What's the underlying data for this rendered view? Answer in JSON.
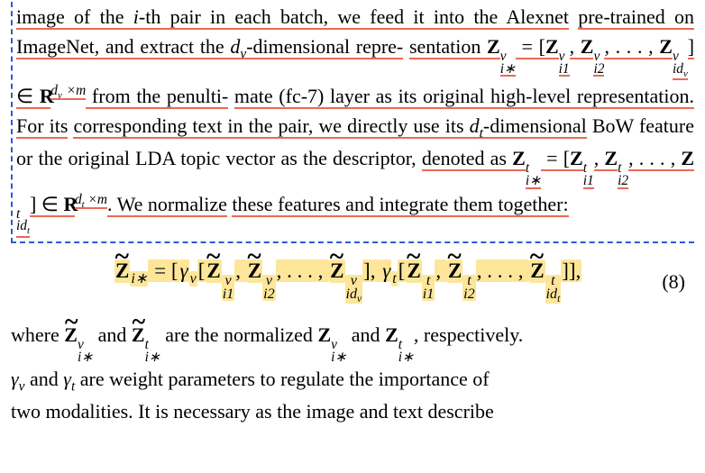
{
  "para1": {
    "t1": "image of the ",
    "ith": "i",
    "t1b": "-th pair in each batch, we feed it into the Alexnet",
    "t2": "pre-trained on ImageNet, and extract the ",
    "dv": "d",
    "dv_sub": "v",
    "t3": "-dimensional repre-",
    "t4": "sentation ",
    "Z1": "Z",
    "vsup": "v",
    "i_star": "i∗",
    "eq_eq": " = [",
    "i1": "i1",
    "comma": ", ",
    "i2": "i2",
    "dots": ", . . . , ",
    "idv": "id",
    "rbr": "] ∈ ",
    "Rsym": "R",
    "dv_m": " ×m",
    "t5a": " from the penulti-",
    "t5": "mate (fc-7) layer as its original high-level representation. For its",
    "t6": "corresponding text in the pair, we directly use its ",
    "dt": "d",
    "dt_sub": "t",
    "t6b": "-dimensional",
    "t7": "BoW feature or the original LDA topic vector as the descriptor,",
    "t8": "denoted as ",
    "tsup": "t",
    "idt": "id",
    "dt_m": " ×m",
    "t9": ". We normalize",
    "t10": "these features and integrate them together:"
  },
  "eq": {
    "Z": "Z",
    "i_star": "i∗",
    "open": " = [",
    "gamma_v": "γ",
    "v": "v",
    "lbrace": "[",
    "i1": "i1",
    "i2": "i2",
    "dots": ", . . . , ",
    "idv": "id",
    "idv_sub": "v",
    "rbr": "], ",
    "gamma_t": "γ",
    "t": "t",
    "idt": "id",
    "idt_sub": "t",
    "close": "]],",
    "num": "(8)"
  },
  "para2": {
    "t1": "where ",
    "Z": "Z",
    "vsup": "v",
    "tsup": "t",
    "i_star": "i∗",
    "and": " and ",
    "t2": " are the normalized ",
    "t3": ", respectively.",
    "t4a": "γ",
    "t4a_sub": "v",
    "t4b": " and ",
    "t4c": "γ",
    "t4c_sub": "t",
    "t5": " are weight parameters to regulate the importance of",
    "t6": "two modalities. It is necessary as the image and text describe"
  },
  "colors": {
    "hl": "#fde69a",
    "underline": "#e86a55",
    "dash": "#2b5bd7"
  }
}
